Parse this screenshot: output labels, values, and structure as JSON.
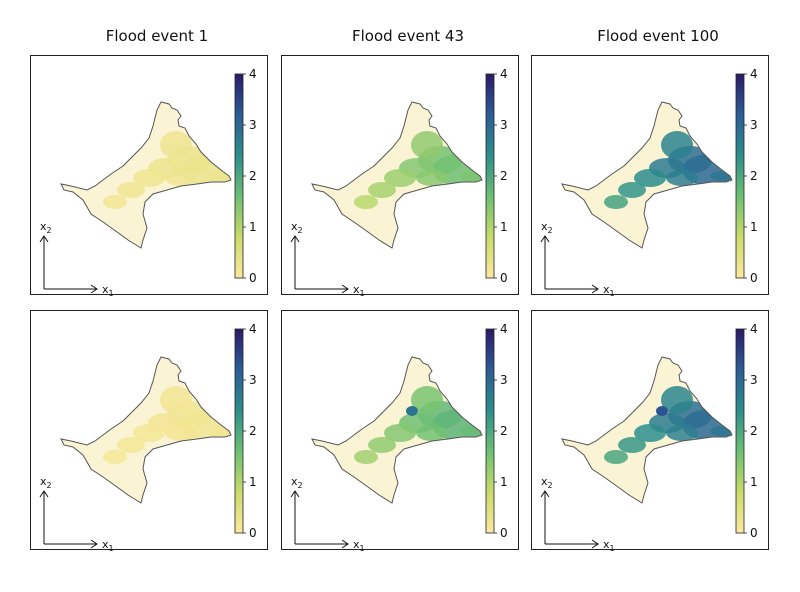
{
  "column_titles": [
    "Flood event 1",
    "Flood event 43",
    "Flood event 100"
  ],
  "axis_labels": {
    "x": "x",
    "x_sub": "1",
    "y": "x",
    "y_sub": "2"
  },
  "colorbar": {
    "ticks": [
      "0",
      "1",
      "2",
      "3",
      "4"
    ],
    "range": [
      0,
      4
    ],
    "colors": [
      "#fde8a0",
      "#c9dc6a",
      "#6dbf73",
      "#2c8e8c",
      "#2c5c96",
      "#2b1a66"
    ]
  },
  "colors": {
    "land": "#faf3d4",
    "coast": "#555555",
    "frame": "#222222"
  },
  "chart_data": [
    {
      "type": "heatmap",
      "title": "Flood event 1",
      "row": 1,
      "colorbar_range": [
        0,
        4
      ],
      "max_value": 0.3,
      "description_values": {
        "northeast_max": 0.3,
        "interior": 0.1
      }
    },
    {
      "type": "heatmap",
      "title": "Flood event 43",
      "row": 1,
      "colorbar_range": [
        0,
        4
      ],
      "max_value": 1.6,
      "description_values": {
        "northeast_max": 1.6,
        "interior": 0.6
      }
    },
    {
      "type": "heatmap",
      "title": "Flood event 100",
      "row": 1,
      "colorbar_range": [
        0,
        4
      ],
      "max_value": 3.0,
      "description_values": {
        "northeast_max": 3.0,
        "interior": 1.6
      }
    },
    {
      "type": "heatmap",
      "title": "",
      "row": 2,
      "colorbar_range": [
        0,
        4
      ],
      "max_value": 0.2,
      "description_values": {
        "northeast_max": 0.2,
        "interior": 0.1
      }
    },
    {
      "type": "heatmap",
      "title": "",
      "row": 2,
      "colorbar_range": [
        0,
        4
      ],
      "max_value": 2.8,
      "description_values": {
        "northeast_max": 1.8,
        "interior": 0.8
      }
    },
    {
      "type": "heatmap",
      "title": "",
      "row": 2,
      "colorbar_range": [
        0,
        4
      ],
      "max_value": 3.3,
      "description_values": {
        "northeast_max": 3.0,
        "interior": 1.5
      }
    }
  ]
}
